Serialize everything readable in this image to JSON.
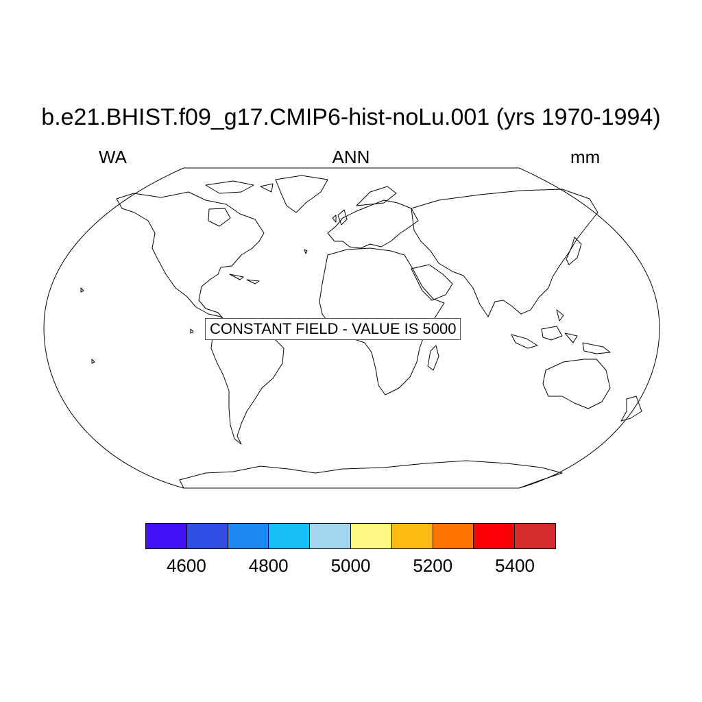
{
  "map": {
    "title": "b.e21.BHIST.f09_g17.CMIP6-hist-noLu.001 (yrs 1970-1994)",
    "variable": "WA",
    "season": "ANN",
    "units": "mm",
    "notice": "CONSTANT FIELD - VALUE IS 5000",
    "projection": "robinson",
    "colorbar": {
      "colors": [
        "#4410f6",
        "#2f4fe5",
        "#1f88f5",
        "#16c1fb",
        "#a4d6f0",
        "#fef781",
        "#fdbb14",
        "#fd7403",
        "#fc0003",
        "#d72a2c"
      ],
      "tick_labels": [
        "4600",
        "4800",
        "5000",
        "5200",
        "5400"
      ]
    }
  }
}
